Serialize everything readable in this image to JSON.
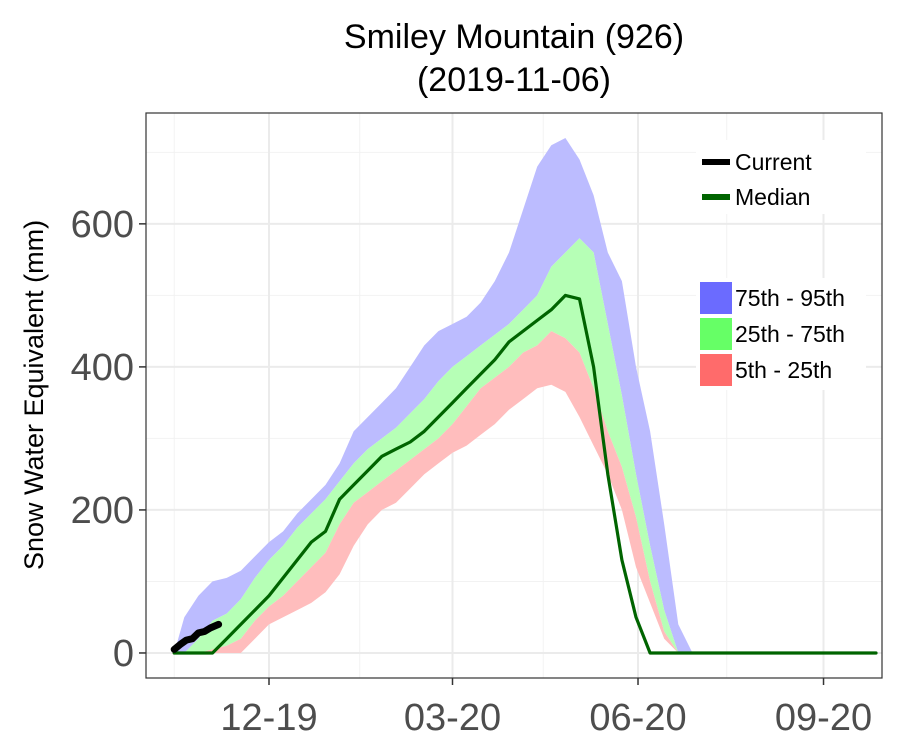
{
  "chart_data": {
    "type": "area",
    "title": "Smiley Mountain (926)",
    "subtitle": "(2019-11-06)",
    "ylabel": "Snow Water Equivalent (mm)",
    "xlabel": "",
    "x_tick_labels": [
      {
        "date": "2019-12-01",
        "label": "12-19"
      },
      {
        "date": "2020-03-01",
        "label": "03-20"
      },
      {
        "date": "2020-06-01",
        "label": "06-20"
      },
      {
        "date": "2020-09-01",
        "label": "09-20"
      }
    ],
    "y_ticks": [
      0,
      200,
      400,
      600
    ],
    "xlim": [
      "2019-10-01",
      "2020-09-30"
    ],
    "ylim": [
      -35,
      755
    ],
    "grid": true,
    "legend_position": "right",
    "legend_lines": [
      {
        "name": "Current",
        "color": "#000000"
      },
      {
        "name": "Median",
        "color": "#006400"
      }
    ],
    "legend_fills": [
      {
        "name": "75th - 95th",
        "color": "#6B6BFF"
      },
      {
        "name": "25th - 75th",
        "color": "#66FF66"
      },
      {
        "name": "5th - 25th",
        "color": "#FF6B6B"
      }
    ],
    "band_colors": {
      "outer": "#BCBCFF",
      "middle": "#B6FFB6",
      "inner": "#FFBDBD"
    },
    "percentile_dates": [
      "2019-10-15",
      "2019-10-20",
      "2019-10-27",
      "2019-11-03",
      "2019-11-10",
      "2019-11-17",
      "2019-11-24",
      "2019-12-01",
      "2019-12-08",
      "2019-12-15",
      "2019-12-22",
      "2019-12-29",
      "2020-01-05",
      "2020-01-12",
      "2020-01-19",
      "2020-01-26",
      "2020-02-02",
      "2020-02-09",
      "2020-02-16",
      "2020-02-23",
      "2020-03-01",
      "2020-03-08",
      "2020-03-15",
      "2020-03-22",
      "2020-03-29",
      "2020-04-05",
      "2020-04-12",
      "2020-04-19",
      "2020-04-26",
      "2020-05-03",
      "2020-05-10",
      "2020-05-17",
      "2020-05-24",
      "2020-05-31",
      "2020-06-07",
      "2020-06-14",
      "2020-06-21",
      "2020-06-28",
      "2020-07-05",
      "2020-07-12",
      "2020-07-19",
      "2020-07-26",
      "2020-08-02",
      "2020-08-30",
      "2020-09-27"
    ],
    "p5": [
      0,
      0,
      0,
      0,
      0,
      0,
      20,
      40,
      50,
      60,
      70,
      85,
      110,
      150,
      180,
      200,
      210,
      230,
      250,
      265,
      280,
      290,
      305,
      320,
      340,
      355,
      370,
      375,
      365,
      330,
      290,
      250,
      200,
      120,
      70,
      20,
      0,
      0,
      0,
      0,
      0,
      0,
      0,
      0,
      0
    ],
    "p25": [
      0,
      0,
      0,
      5,
      10,
      20,
      45,
      65,
      80,
      100,
      120,
      140,
      180,
      210,
      225,
      240,
      255,
      270,
      285,
      300,
      320,
      345,
      370,
      385,
      400,
      420,
      430,
      450,
      440,
      420,
      370,
      310,
      260,
      190,
      100,
      30,
      0,
      0,
      0,
      0,
      0,
      0,
      0,
      0,
      0
    ],
    "p75": [
      0,
      0,
      20,
      45,
      55,
      75,
      105,
      130,
      150,
      175,
      195,
      215,
      240,
      265,
      285,
      300,
      315,
      335,
      355,
      380,
      400,
      415,
      430,
      445,
      460,
      480,
      500,
      540,
      560,
      580,
      560,
      460,
      360,
      250,
      150,
      60,
      0,
      0,
      0,
      0,
      0,
      0,
      0,
      0,
      0
    ],
    "p95": [
      0,
      50,
      80,
      100,
      105,
      115,
      135,
      155,
      170,
      195,
      215,
      235,
      265,
      310,
      330,
      350,
      370,
      400,
      430,
      450,
      460,
      470,
      490,
      520,
      560,
      620,
      680,
      710,
      720,
      690,
      640,
      560,
      520,
      400,
      310,
      180,
      40,
      0,
      0,
      0,
      0,
      0,
      0,
      0,
      0
    ],
    "series": [
      {
        "name": "Median",
        "x": [
          "2019-10-15",
          "2019-11-03",
          "2019-11-10",
          "2019-11-17",
          "2019-11-24",
          "2019-12-01",
          "2019-12-08",
          "2019-12-15",
          "2019-12-22",
          "2019-12-29",
          "2020-01-05",
          "2020-01-12",
          "2020-01-19",
          "2020-01-26",
          "2020-02-02",
          "2020-02-09",
          "2020-02-16",
          "2020-02-23",
          "2020-03-01",
          "2020-03-08",
          "2020-03-15",
          "2020-03-22",
          "2020-03-29",
          "2020-04-05",
          "2020-04-12",
          "2020-04-19",
          "2020-04-26",
          "2020-05-03",
          "2020-05-10",
          "2020-05-17",
          "2020-05-24",
          "2020-05-31",
          "2020-06-07",
          "2020-06-14",
          "2020-06-21",
          "2020-09-27"
        ],
        "y": [
          0,
          0,
          20,
          40,
          60,
          80,
          105,
          130,
          155,
          170,
          215,
          235,
          255,
          275,
          285,
          295,
          310,
          330,
          350,
          370,
          390,
          410,
          435,
          450,
          465,
          480,
          500,
          495,
          400,
          250,
          130,
          50,
          0,
          0,
          0,
          0
        ]
      },
      {
        "name": "Current",
        "x": [
          "2019-10-15",
          "2019-10-18",
          "2019-10-21",
          "2019-10-24",
          "2019-10-27",
          "2019-10-30",
          "2019-11-02",
          "2019-11-06"
        ],
        "y": [
          5,
          12,
          18,
          20,
          28,
          30,
          35,
          40
        ]
      }
    ]
  }
}
